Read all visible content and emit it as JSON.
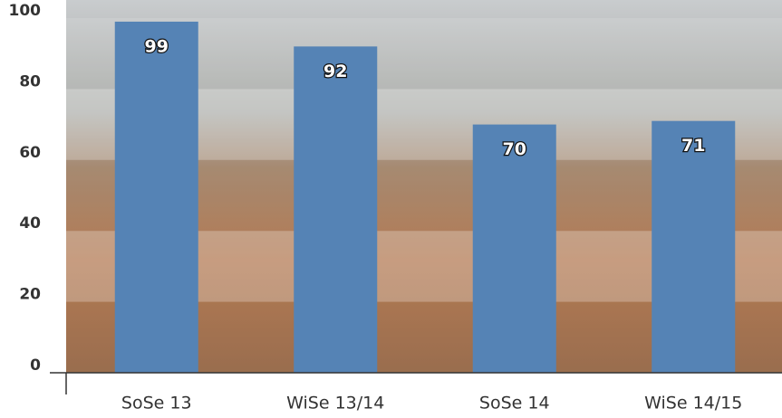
{
  "chart_data": {
    "type": "bar",
    "categories": [
      "SoSe 13",
      "WiSe 13/14",
      "SoSe 14",
      "WiSe 14/15"
    ],
    "values": [
      99,
      92,
      70,
      71
    ],
    "color": "#5583b5",
    "ylim": [
      0,
      100
    ],
    "yticks": [
      0,
      20,
      40,
      60,
      80,
      100
    ]
  }
}
